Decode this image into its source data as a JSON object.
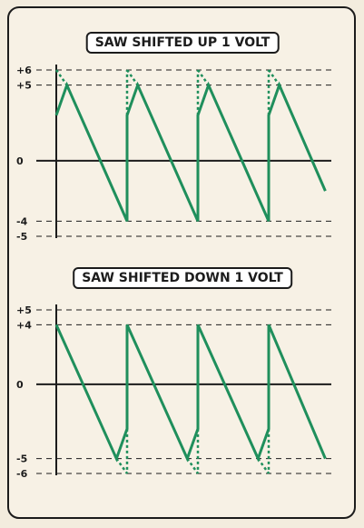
{
  "panels": [
    {
      "title": "SAW SHIFTED UP 1 VOLT",
      "y_ticks": [
        {
          "value": 6,
          "label": "+6",
          "dashed": true
        },
        {
          "value": 5,
          "label": "+5",
          "dashed": true
        },
        {
          "value": 0,
          "label": "0",
          "dashed": false
        },
        {
          "value": -4,
          "label": "-4",
          "dashed": true
        },
        {
          "value": -5,
          "label": "-5",
          "dashed": true
        }
      ],
      "ylim": [
        -5,
        6
      ],
      "solid_points": [
        [
          0,
          3
        ],
        [
          0.15,
          5
        ],
        [
          1,
          -4
        ],
        [
          1,
          3
        ],
        [
          1.15,
          5
        ],
        [
          2,
          -4
        ],
        [
          2,
          3
        ],
        [
          2.15,
          5
        ],
        [
          3,
          -4
        ],
        [
          3,
          3
        ],
        [
          3.15,
          5
        ],
        [
          3.8,
          -2
        ]
      ],
      "dashed_points": [
        [
          [
            0,
            6
          ],
          [
            0.15,
            5
          ]
        ],
        [
          [
            1,
            6
          ],
          [
            1.15,
            5
          ]
        ],
        [
          [
            2,
            6
          ],
          [
            2.15,
            5
          ]
        ],
        [
          [
            3,
            6
          ],
          [
            3.15,
            5
          ]
        ]
      ],
      "dashed_verticals": [
        [
          [
            1,
            3
          ],
          [
            1,
            6
          ]
        ],
        [
          [
            2,
            3
          ],
          [
            2,
            6
          ]
        ],
        [
          [
            3,
            3
          ],
          [
            3,
            6
          ]
        ]
      ]
    },
    {
      "title": "SAW SHIFTED DOWN 1 VOLT",
      "y_ticks": [
        {
          "value": 5,
          "label": "+5",
          "dashed": true
        },
        {
          "value": 4,
          "label": "+4",
          "dashed": true
        },
        {
          "value": 0,
          "label": "0",
          "dashed": false
        },
        {
          "value": -5,
          "label": "-5",
          "dashed": true
        },
        {
          "value": -6,
          "label": "-6",
          "dashed": true
        }
      ],
      "ylim": [
        -6,
        5
      ],
      "solid_points": [
        [
          0,
          4
        ],
        [
          0.85,
          -5
        ],
        [
          1,
          -3
        ],
        [
          1,
          4
        ],
        [
          1.85,
          -5
        ],
        [
          2,
          -3
        ],
        [
          2,
          4
        ],
        [
          2.85,
          -5
        ],
        [
          3,
          -3
        ],
        [
          3,
          4
        ],
        [
          3.8,
          -5
        ]
      ],
      "dashed_points": [
        [
          [
            0.85,
            -5
          ],
          [
            1,
            -6
          ]
        ],
        [
          [
            1.85,
            -5
          ],
          [
            2,
            -6
          ]
        ],
        [
          [
            2.85,
            -5
          ],
          [
            3,
            -6
          ]
        ]
      ],
      "dashed_verticals": [
        [
          [
            1,
            -3
          ],
          [
            1,
            -6
          ]
        ],
        [
          [
            2,
            -3
          ],
          [
            2,
            -6
          ]
        ],
        [
          [
            3,
            -3
          ],
          [
            3,
            -6
          ]
        ]
      ]
    }
  ],
  "colors": {
    "wave": "#1f8f5c",
    "axis": "#1c1c1c",
    "card": "#f7f1e5",
    "background": "#f3ecde"
  }
}
